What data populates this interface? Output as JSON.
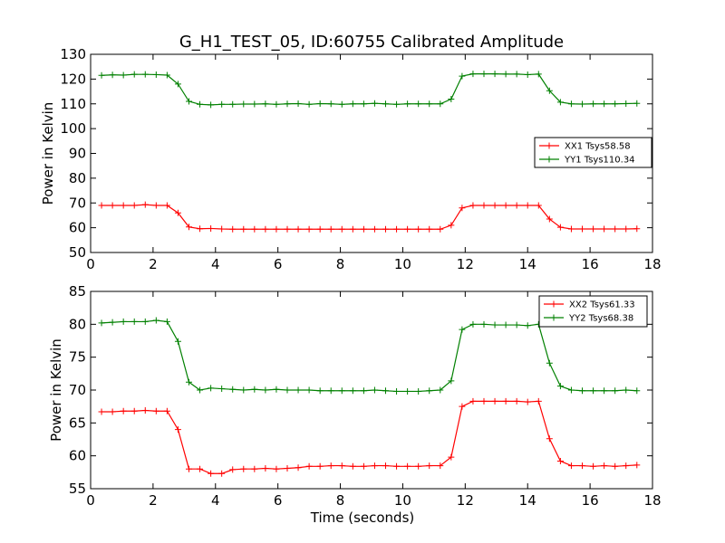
{
  "title": "G_H1_TEST_05, ID:60755 Calibrated Amplitude",
  "colors": {
    "red": "#ff0000",
    "green": "#008000"
  },
  "chart_data": [
    {
      "type": "line",
      "ylabel": "Power in Kelvin",
      "xlabel": "",
      "xlim": [
        0,
        18
      ],
      "ylim": [
        50,
        130
      ],
      "xticks": [
        0,
        2,
        4,
        6,
        8,
        10,
        12,
        14,
        16,
        18
      ],
      "yticks": [
        50,
        60,
        70,
        80,
        90,
        100,
        110,
        120,
        130
      ],
      "legend_position": "right",
      "x": [
        0.35,
        0.7,
        1.05,
        1.4,
        1.75,
        2.1,
        2.45,
        2.8,
        3.15,
        3.5,
        3.85,
        4.2,
        4.55,
        4.9,
        5.25,
        5.6,
        5.95,
        6.3,
        6.65,
        7.0,
        7.35,
        7.7,
        8.05,
        8.4,
        8.75,
        9.1,
        9.45,
        9.8,
        10.15,
        10.5,
        10.85,
        11.2,
        11.55,
        11.9,
        12.25,
        12.6,
        12.95,
        13.3,
        13.65,
        14.0,
        14.35,
        14.7,
        15.05,
        15.4,
        15.75,
        16.1,
        16.45,
        16.8,
        17.15,
        17.5
      ],
      "series": [
        {
          "name": "XX1 Tsys58.58",
          "color": "#ff0000",
          "values": [
            69.0,
            69.0,
            69.0,
            69.0,
            69.3,
            69.0,
            69.0,
            66.0,
            60.3,
            59.6,
            59.7,
            59.5,
            59.4,
            59.4,
            59.4,
            59.4,
            59.4,
            59.4,
            59.4,
            59.4,
            59.4,
            59.4,
            59.4,
            59.4,
            59.4,
            59.4,
            59.4,
            59.4,
            59.4,
            59.4,
            59.4,
            59.4,
            61.0,
            68.0,
            69.0,
            69.0,
            69.0,
            69.0,
            69.0,
            69.0,
            69.0,
            63.5,
            60.2,
            59.5,
            59.5,
            59.5,
            59.5,
            59.5,
            59.5,
            59.6
          ]
        },
        {
          "name": "YY1 Tsys110.34",
          "color": "#008000",
          "values": [
            121.5,
            121.7,
            121.6,
            121.9,
            121.9,
            121.8,
            121.6,
            118.0,
            111.0,
            109.8,
            109.6,
            109.8,
            109.8,
            109.9,
            109.9,
            110.0,
            109.8,
            110.0,
            110.1,
            109.8,
            110.1,
            110.0,
            109.8,
            110.0,
            110.0,
            110.2,
            110.0,
            109.8,
            110.0,
            110.0,
            110.0,
            110.0,
            111.9,
            121.2,
            122.1,
            122.1,
            122.1,
            122.0,
            122.0,
            121.8,
            122.0,
            115.3,
            110.7,
            110.0,
            109.9,
            110.0,
            110.0,
            110.0,
            110.1,
            110.2
          ]
        }
      ]
    },
    {
      "type": "line",
      "ylabel": "Power in Kelvin",
      "xlabel": "Time (seconds)",
      "xlim": [
        0,
        18
      ],
      "ylim": [
        55,
        85
      ],
      "xticks": [
        0,
        2,
        4,
        6,
        8,
        10,
        12,
        14,
        16,
        18
      ],
      "yticks": [
        55,
        60,
        65,
        70,
        75,
        80,
        85
      ],
      "legend_position": "top-right",
      "x": [
        0.35,
        0.7,
        1.05,
        1.4,
        1.75,
        2.1,
        2.45,
        2.8,
        3.15,
        3.5,
        3.85,
        4.2,
        4.55,
        4.9,
        5.25,
        5.6,
        5.95,
        6.3,
        6.65,
        7.0,
        7.35,
        7.7,
        8.05,
        8.4,
        8.75,
        9.1,
        9.45,
        9.8,
        10.15,
        10.5,
        10.85,
        11.2,
        11.55,
        11.9,
        12.25,
        12.6,
        12.95,
        13.3,
        13.65,
        14.0,
        14.35,
        14.7,
        15.05,
        15.4,
        15.75,
        16.1,
        16.45,
        16.8,
        17.15,
        17.5
      ],
      "series": [
        {
          "name": "XX2 Tsys61.33",
          "color": "#ff0000",
          "values": [
            66.7,
            66.7,
            66.8,
            66.8,
            66.9,
            66.8,
            66.8,
            64.0,
            58.0,
            58.0,
            57.3,
            57.3,
            57.9,
            58.0,
            58.0,
            58.1,
            58.0,
            58.1,
            58.2,
            58.4,
            58.4,
            58.5,
            58.5,
            58.4,
            58.4,
            58.5,
            58.5,
            58.4,
            58.4,
            58.4,
            58.5,
            58.5,
            59.8,
            67.5,
            68.3,
            68.3,
            68.3,
            68.3,
            68.3,
            68.2,
            68.3,
            62.6,
            59.2,
            58.5,
            58.5,
            58.4,
            58.5,
            58.4,
            58.5,
            58.6
          ]
        },
        {
          "name": "YY2 Tsys68.38",
          "color": "#008000",
          "values": [
            80.2,
            80.3,
            80.4,
            80.4,
            80.4,
            80.6,
            80.4,
            77.4,
            71.2,
            70.0,
            70.3,
            70.2,
            70.1,
            70.0,
            70.1,
            70.0,
            70.1,
            70.0,
            70.0,
            70.0,
            69.9,
            69.9,
            69.9,
            69.9,
            69.9,
            70.0,
            69.9,
            69.8,
            69.8,
            69.8,
            69.9,
            70.0,
            71.4,
            79.2,
            80.0,
            80.0,
            79.9,
            79.9,
            79.9,
            79.8,
            80.0,
            74.1,
            70.6,
            70.0,
            69.9,
            69.9,
            69.9,
            69.9,
            70.0,
            69.9
          ]
        }
      ]
    }
  ]
}
